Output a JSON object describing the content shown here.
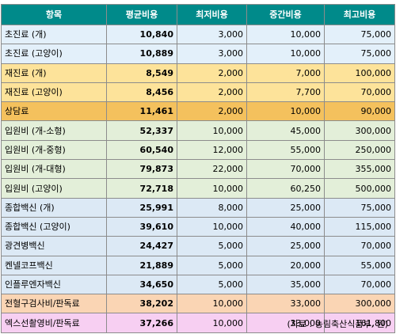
{
  "headers": [
    "항목",
    "평균비용",
    "최저비용",
    "중간비용",
    "최고비용"
  ],
  "colors": {
    "header": "#008a8a",
    "consult": "#e3f0fa",
    "consult_alt": "#f6d06b",
    "revisit": "#fde39a",
    "consult_fee": "#f4c15d",
    "hospitalization": "#e3efd9",
    "vaccine": "#dce9f5",
    "blood_test": "#fad5b4",
    "xray": "#f7cff2"
  },
  "rows": [
    {
      "item": "초진료 (개)",
      "avg": "10,840",
      "min": "3,000",
      "mid": "10,000",
      "max": "75,000",
      "color": "#e3f0fa"
    },
    {
      "item": "초진료 (고양이)",
      "avg": "10,889",
      "min": "3,000",
      "mid": "10,000",
      "max": "75,000",
      "color": "#e3f0fa"
    },
    {
      "item": "재진료 (개)",
      "avg": "8,549",
      "min": "2,000",
      "mid": "7,000",
      "max": "100,000",
      "color": "#fde39a"
    },
    {
      "item": "재진료 (고양이)",
      "avg": "8,456",
      "min": "2,000",
      "mid": "7,700",
      "max": "70,000",
      "color": "#fde39a"
    },
    {
      "item": "상담료",
      "avg": "11,461",
      "min": "2,000",
      "mid": "10,000",
      "max": "90,000",
      "color": "#f4c15d"
    },
    {
      "item": "입원비 (개-소형)",
      "avg": "52,337",
      "min": "10,000",
      "mid": "45,000",
      "max": "300,000",
      "color": "#e3efd9"
    },
    {
      "item": "입원비 (개-중형)",
      "avg": "60,540",
      "min": "12,000",
      "mid": "55,000",
      "max": "250,000",
      "color": "#e3efd9"
    },
    {
      "item": "입원비 (개-대형)",
      "avg": "79,873",
      "min": "22,000",
      "mid": "70,000",
      "max": "355,000",
      "color": "#e3efd9"
    },
    {
      "item": "입원비 (고양이)",
      "avg": "72,718",
      "min": "10,000",
      "mid": "60,250",
      "max": "500,000",
      "color": "#e3efd9"
    },
    {
      "item": "종합백신 (개)",
      "avg": "25,991",
      "min": "8,000",
      "mid": "25,000",
      "max": "75,000",
      "color": "#dce9f5"
    },
    {
      "item": "종합백신 (고양이)",
      "avg": "39,610",
      "min": "10,000",
      "mid": "40,000",
      "max": "115,000",
      "color": "#dce9f5"
    },
    {
      "item": "광견병백신",
      "avg": "24,427",
      "min": "5,000",
      "mid": "25,000",
      "max": "70,000",
      "color": "#dce9f5"
    },
    {
      "item": "켄넬코프백신",
      "avg": "21,889",
      "min": "5,000",
      "mid": "20,000",
      "max": "55,000",
      "color": "#dce9f5"
    },
    {
      "item": "인플루엔자백신",
      "avg": "34,650",
      "min": "5,000",
      "mid": "35,000",
      "max": "70,000",
      "color": "#dce9f5"
    },
    {
      "item": "전혈구검사비/판독료",
      "avg": "38,202",
      "min": "10,000",
      "mid": "33,000",
      "max": "300,000",
      "color": "#fad5b4"
    },
    {
      "item": "엑스선촬영비/판독료",
      "avg": "37,266",
      "min": "10,000",
      "mid": "33,000",
      "max": "161,800",
      "color": "#f7cff2"
    }
  ],
  "source": "(자료 : 농림축산식품부, 원)"
}
